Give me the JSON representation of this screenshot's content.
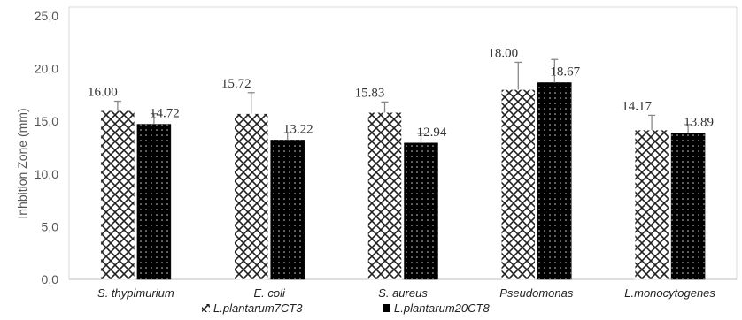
{
  "chart_data": {
    "type": "bar",
    "title": "",
    "xlabel": "",
    "ylabel": "Inhbition Zone (mm)",
    "ylim": [
      0,
      25
    ],
    "yticks": [
      "0,0",
      "5,0",
      "10,0",
      "15,0",
      "20,0",
      "25,0"
    ],
    "ytick_values": [
      0,
      5,
      10,
      15,
      20,
      25
    ],
    "grid": false,
    "legend_position": "bottom",
    "categories": [
      "S. thypimurium",
      "E. coli",
      "S. aureus",
      "Pseudomonas",
      "L.monocytogenes"
    ],
    "series": [
      {
        "name": "L.plantarum7CT3",
        "pattern": "crosshatch",
        "values": [
          16.0,
          15.72,
          15.83,
          18.0,
          14.17
        ],
        "labels": [
          "16.00",
          "15.72",
          "15.83",
          "18.00",
          "14.17"
        ],
        "errors": [
          0.9,
          2.0,
          1.0,
          2.6,
          1.4
        ]
      },
      {
        "name": "L.plantarum20CT8",
        "pattern": "dotted-black",
        "values": [
          14.72,
          13.22,
          12.94,
          18.67,
          13.89
        ],
        "labels": [
          "14.72",
          "13.22",
          "12.94",
          "18.67",
          "13.89"
        ],
        "errors": [
          1.0,
          0.7,
          0.9,
          2.2,
          0.8
        ]
      }
    ],
    "colors": {
      "series1_fill": "#ffffff",
      "series2_fill": "#000000",
      "stroke": "#222222",
      "axis": "#d9d9d9",
      "error_bar": "#888888"
    }
  }
}
